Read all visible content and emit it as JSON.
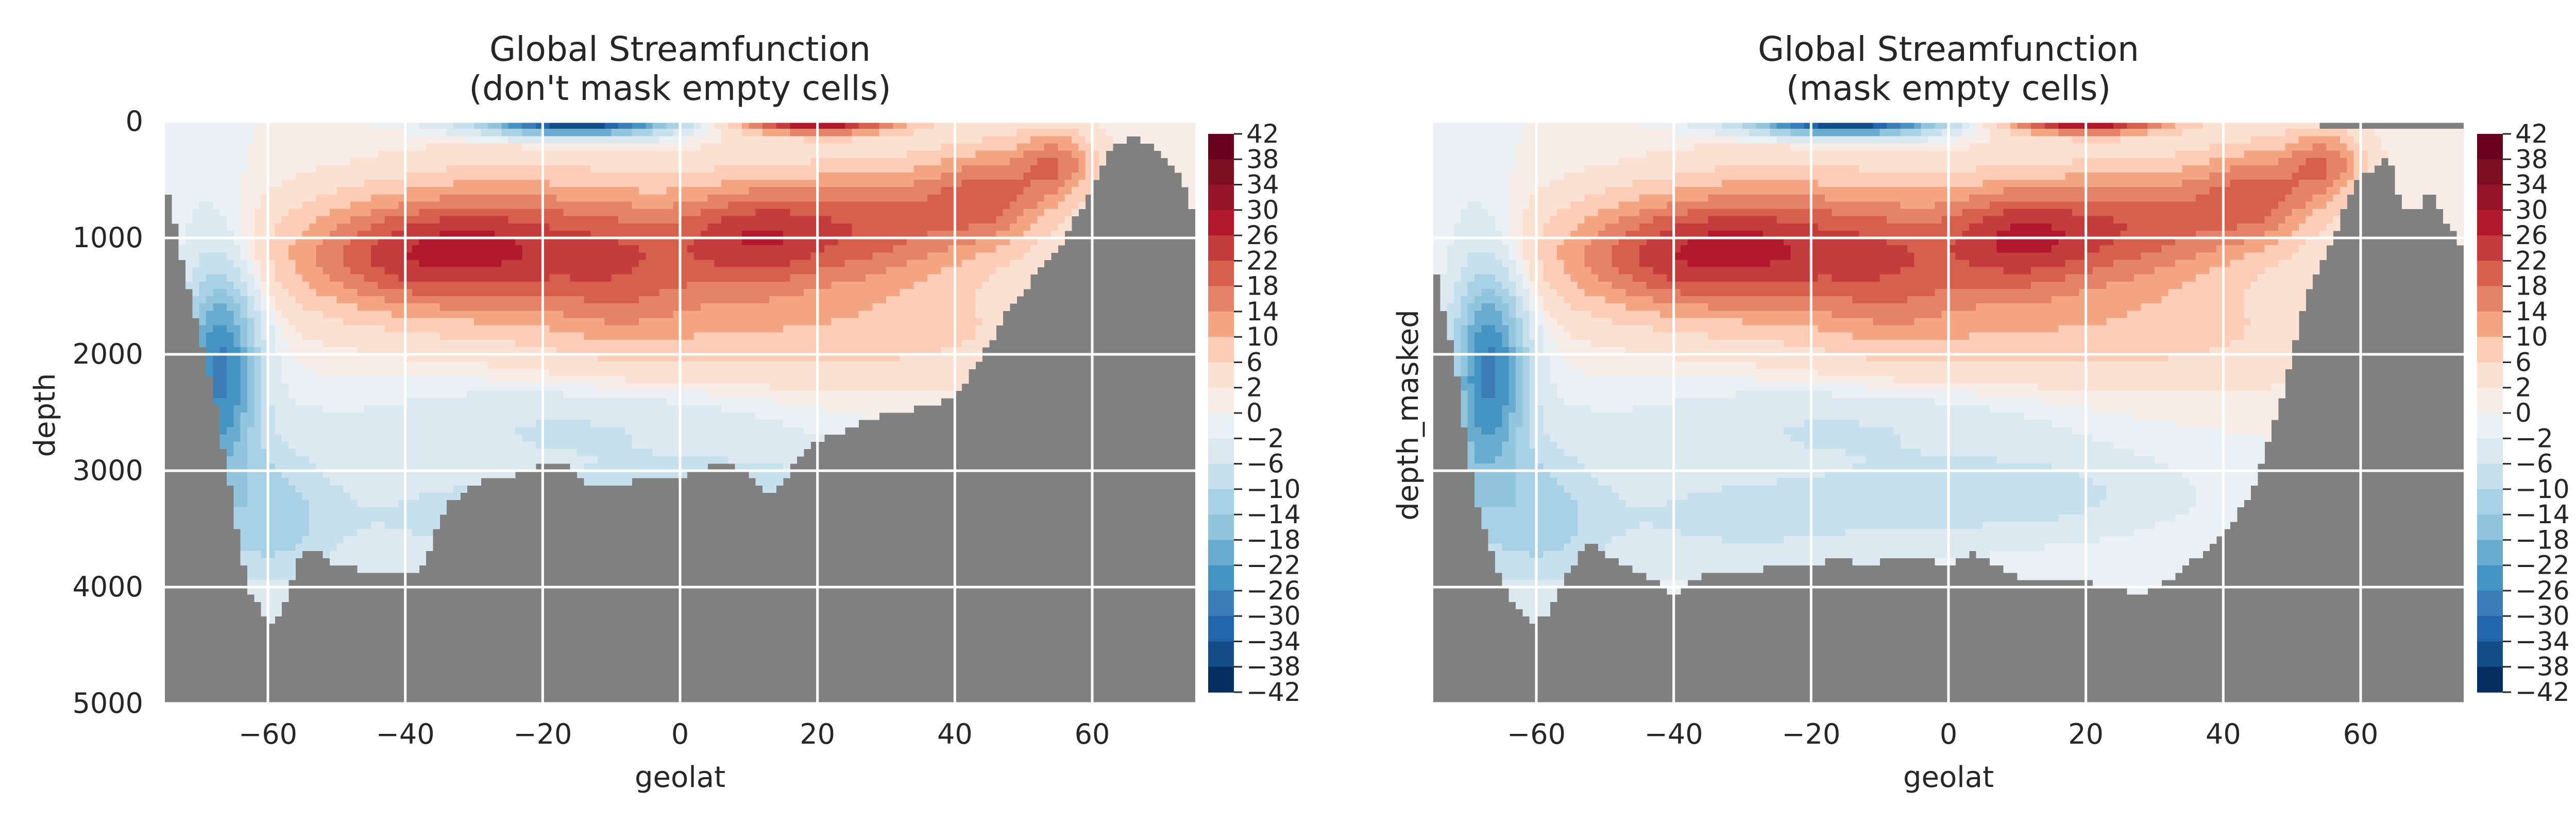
{
  "chart_data": [
    {
      "type": "contourf",
      "title_line1": "Global Streamfunction",
      "title_line2": "(don't mask empty cells)",
      "xlabel": "geolat",
      "ylabel": "depth",
      "xlim": [
        -75,
        75
      ],
      "ylim": [
        5000,
        0
      ],
      "xticks": [
        -60,
        -40,
        -20,
        0,
        20,
        40,
        60
      ],
      "xtick_labels": [
        "−60",
        "−40",
        "−20",
        "0",
        "20",
        "40",
        "60"
      ],
      "yticks": [
        0,
        1000,
        2000,
        3000,
        4000,
        5000
      ],
      "ytick_labels": [
        "0",
        "1000",
        "2000",
        "3000",
        "4000",
        "5000"
      ],
      "masked_color": "#808080",
      "grid": true,
      "colormap": "RdBu_r",
      "levels": [
        -42,
        -38,
        -34,
        -30,
        -26,
        -22,
        -18,
        -14,
        -10,
        -6,
        -2,
        0,
        2,
        6,
        10,
        14,
        18,
        22,
        26,
        30,
        34,
        38,
        42
      ],
      "colorbar_labels": [
        "42",
        "38",
        "34",
        "30",
        "26",
        "22",
        "18",
        "14",
        "10",
        "6",
        "2",
        "0",
        "−2",
        "−6",
        "−10",
        "−14",
        "−18",
        "−22",
        "−26",
        "−30",
        "−34",
        "−38",
        "−42"
      ]
    },
    {
      "type": "contourf",
      "title_line1": "Global Streamfunction",
      "title_line2": "(mask empty cells)",
      "xlabel": "geolat",
      "ylabel": "depth_masked",
      "xlim": [
        -75,
        75
      ],
      "ylim": [
        5000,
        0
      ],
      "xticks": [
        -60,
        -40,
        -20,
        0,
        20,
        40,
        60
      ],
      "xtick_labels": [
        "−60",
        "−40",
        "−20",
        "0",
        "20",
        "40",
        "60"
      ],
      "yticks": [
        0,
        1000,
        2000,
        3000,
        4000,
        5000
      ],
      "ytick_labels": [],
      "masked_color": "#808080",
      "grid": true,
      "colormap": "RdBu_r",
      "levels": [
        -42,
        -38,
        -34,
        -30,
        -26,
        -22,
        -18,
        -14,
        -10,
        -6,
        -2,
        0,
        2,
        6,
        10,
        14,
        18,
        22,
        26,
        30,
        34,
        38,
        42
      ],
      "colorbar_labels": [
        "42",
        "38",
        "34",
        "30",
        "26",
        "22",
        "18",
        "14",
        "10",
        "6",
        "2",
        "0",
        "−2",
        "−6",
        "−10",
        "−14",
        "−18",
        "−22",
        "−26",
        "−30",
        "−34",
        "−38",
        "−42"
      ]
    }
  ]
}
